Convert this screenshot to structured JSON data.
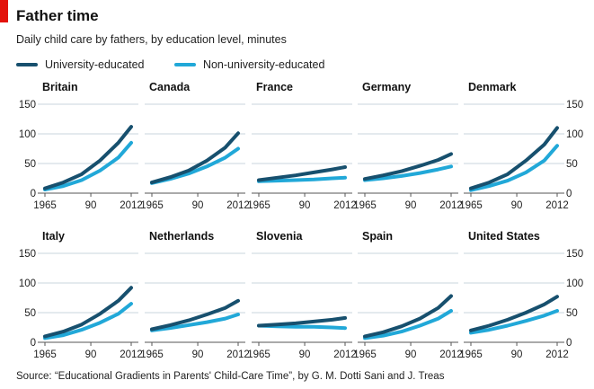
{
  "header": {
    "title": "Father time",
    "subtitle": "Daily child care by fathers, by education level, minutes"
  },
  "legend": {
    "items": [
      {
        "label": "University-educated",
        "color": "#17506e"
      },
      {
        "label": "Non-university-educated",
        "color": "#21a8d8"
      }
    ]
  },
  "footer": {
    "source": "Source: “Educational Gradients in Parents' Child-Care Time”, by G. M. Dotti Sani and J. Treas"
  },
  "chart_data": {
    "type": "line",
    "ylim": [
      0,
      150
    ],
    "y_ticks": [
      0,
      50,
      100,
      150
    ],
    "x_range": [
      1965,
      2012
    ],
    "x_ticks": [
      "1965",
      "90",
      "2012"
    ],
    "x_tick_values": [
      1965,
      1990,
      2012
    ],
    "grid": true,
    "colors": {
      "university": "#17506e",
      "non_university": "#21a8d8"
    },
    "x": [
      1965,
      1975,
      1985,
      1995,
      2005,
      2012
    ],
    "panels": [
      {
        "name": "Britain",
        "university": [
          8,
          18,
          32,
          55,
          85,
          112
        ],
        "non_university": [
          6,
          12,
          22,
          38,
          60,
          85
        ]
      },
      {
        "name": "Canada",
        "university": [
          18,
          27,
          38,
          55,
          77,
          101
        ],
        "non_university": [
          17,
          24,
          33,
          45,
          60,
          75
        ]
      },
      {
        "name": "France",
        "university": [
          22,
          26,
          30,
          35,
          40,
          44
        ],
        "non_university": [
          20,
          21,
          22,
          23,
          25,
          26
        ]
      },
      {
        "name": "Germany",
        "university": [
          24,
          30,
          37,
          46,
          56,
          66
        ],
        "non_university": [
          22,
          25,
          29,
          34,
          40,
          45
        ]
      },
      {
        "name": "Denmark",
        "university": [
          8,
          18,
          32,
          55,
          82,
          110
        ],
        "non_university": [
          5,
          12,
          21,
          35,
          55,
          80
        ]
      },
      {
        "name": "Italy",
        "university": [
          10,
          18,
          30,
          48,
          70,
          92
        ],
        "non_university": [
          7,
          12,
          21,
          33,
          48,
          65
        ]
      },
      {
        "name": "Netherlands",
        "university": [
          22,
          29,
          37,
          47,
          58,
          70
        ],
        "non_university": [
          20,
          24,
          29,
          34,
          40,
          47
        ]
      },
      {
        "name": "Slovenia",
        "university": [
          28,
          30,
          32,
          35,
          38,
          41
        ],
        "non_university": [
          28,
          27,
          26,
          26,
          25,
          24
        ]
      },
      {
        "name": "Spain",
        "university": [
          10,
          17,
          27,
          40,
          58,
          78
        ],
        "non_university": [
          7,
          11,
          18,
          28,
          40,
          53
        ]
      },
      {
        "name": "United States",
        "university": [
          20,
          28,
          38,
          50,
          64,
          77
        ],
        "non_university": [
          16,
          21,
          28,
          36,
          45,
          53
        ]
      }
    ]
  }
}
